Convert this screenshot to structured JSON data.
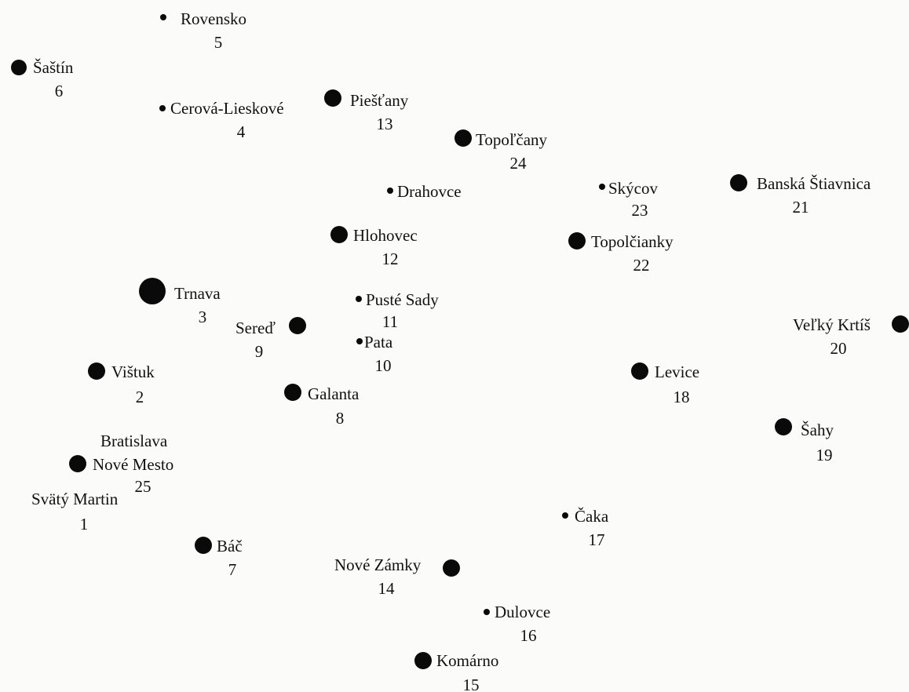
{
  "places": [
    {
      "name": "Rovensko",
      "number": "5"
    },
    {
      "name": "Šaštín",
      "number": "6"
    },
    {
      "name": "Cerová-Lieskové",
      "number": "4"
    },
    {
      "name": "Piešťany",
      "number": "13"
    },
    {
      "name": "Topoľčany",
      "number": "24"
    },
    {
      "name": "Drahovce"
    },
    {
      "name": "Skýcov",
      "number": "23"
    },
    {
      "name": "Banská Štiavnica",
      "number": "21"
    },
    {
      "name": "Hlohovec",
      "number": "12"
    },
    {
      "name": "Topolčianky",
      "number": "22"
    },
    {
      "name": "Trnava",
      "number": "3"
    },
    {
      "name": "Pusté  Sady",
      "number": "11"
    },
    {
      "name": "Sereď",
      "number": "9"
    },
    {
      "name": "Pata",
      "number": "10"
    },
    {
      "name": "Veľký Krtíš",
      "number": "20"
    },
    {
      "name": "Vištuk",
      "number": "2"
    },
    {
      "name": "Levice",
      "number": "18"
    },
    {
      "name": "Galanta",
      "number": "8"
    },
    {
      "name": "Šahy",
      "number": "19"
    },
    {
      "name": "Bratislava"
    },
    {
      "name": "Nové Mesto",
      "number": "25"
    },
    {
      "name": "Svätý Martin",
      "number": "1"
    },
    {
      "name": "Čaka",
      "number": "17"
    },
    {
      "name": "Báč",
      "number": "7"
    },
    {
      "name": "Nové Zámky",
      "number": "14"
    },
    {
      "name": "Dulovce",
      "number": "16"
    },
    {
      "name": "Komárno",
      "number": "15"
    }
  ]
}
